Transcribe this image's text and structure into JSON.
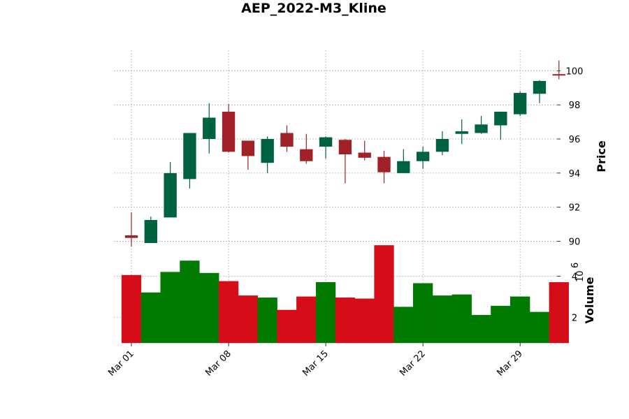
{
  "chart_data": {
    "type": "candlestick",
    "title": "AEP_2022-M3_Kline",
    "price_ylabel": "Price",
    "volume_ylabel": "Volume",
    "volume_exponent_base": "10",
    "volume_exponent": "6",
    "price_ylim": [
      89.0,
      101.2
    ],
    "price_ticks": [
      90,
      92,
      94,
      96,
      98,
      100
    ],
    "volume_ylim": [
      0.75,
      4.8
    ],
    "volume_ticks": [
      2,
      4
    ],
    "xlim": [
      -0.9,
      21.9
    ],
    "x_ticks": [
      {
        "index": 0,
        "label": "Mar 01"
      },
      {
        "index": 5,
        "label": "Mar 08"
      },
      {
        "index": 10,
        "label": "Mar 15"
      },
      {
        "index": 15,
        "label": "Mar 22"
      },
      {
        "index": 20,
        "label": "Mar 29"
      }
    ],
    "grid": true,
    "colors": {
      "up": "#006340",
      "down": "#a02128",
      "vol_up": "#007a00",
      "vol_down": "#d50d18"
    },
    "candles": [
      {
        "date": "2022-03-01",
        "open": 90.35,
        "high": 91.7,
        "low": 89.7,
        "close": 90.2,
        "volume": 4.05
      },
      {
        "date": "2022-03-02",
        "open": 89.9,
        "high": 91.45,
        "low": 89.9,
        "close": 91.25,
        "volume": 3.2
      },
      {
        "date": "2022-03-03",
        "open": 91.4,
        "high": 94.65,
        "low": 91.4,
        "close": 94.0,
        "volume": 4.2
      },
      {
        "date": "2022-03-04",
        "open": 93.65,
        "high": 96.35,
        "low": 93.1,
        "close": 96.35,
        "volume": 4.75
      },
      {
        "date": "2022-03-07",
        "open": 96.0,
        "high": 98.1,
        "low": 95.15,
        "close": 97.25,
        "volume": 4.15
      },
      {
        "date": "2022-03-08",
        "open": 97.6,
        "high": 98.05,
        "low": 95.2,
        "close": 95.25,
        "volume": 3.75
      },
      {
        "date": "2022-03-09",
        "open": 95.9,
        "high": 95.9,
        "low": 94.2,
        "close": 95.0,
        "volume": 3.05
      },
      {
        "date": "2022-03-10",
        "open": 94.6,
        "high": 96.15,
        "low": 94.0,
        "close": 96.0,
        "volume": 2.95
      },
      {
        "date": "2022-03-11",
        "open": 96.35,
        "high": 96.8,
        "low": 95.25,
        "close": 95.55,
        "volume": 2.35
      },
      {
        "date": "2022-03-14",
        "open": 95.4,
        "high": 96.3,
        "low": 94.55,
        "close": 94.7,
        "volume": 3.0
      },
      {
        "date": "2022-03-15",
        "open": 95.55,
        "high": 96.15,
        "low": 94.85,
        "close": 96.1,
        "volume": 3.7
      },
      {
        "date": "2022-03-16",
        "open": 95.95,
        "high": 96.0,
        "low": 93.4,
        "close": 95.1,
        "volume": 2.95
      },
      {
        "date": "2022-03-17",
        "open": 95.2,
        "high": 95.9,
        "low": 94.75,
        "close": 94.9,
        "volume": 2.9
      },
      {
        "date": "2022-03-18",
        "open": 94.95,
        "high": 95.3,
        "low": 93.4,
        "close": 94.05,
        "volume": 5.5
      },
      {
        "date": "2022-03-21",
        "open": 94.0,
        "high": 95.4,
        "low": 94.0,
        "close": 94.7,
        "volume": 2.5
      },
      {
        "date": "2022-03-22",
        "open": 94.7,
        "high": 95.55,
        "low": 94.25,
        "close": 95.25,
        "volume": 3.65
      },
      {
        "date": "2022-03-23",
        "open": 95.25,
        "high": 96.45,
        "low": 95.05,
        "close": 96.0,
        "volume": 3.05
      },
      {
        "date": "2022-03-24",
        "open": 96.3,
        "high": 97.15,
        "low": 95.7,
        "close": 96.45,
        "volume": 3.1
      },
      {
        "date": "2022-03-25",
        "open": 96.35,
        "high": 97.35,
        "low": 96.3,
        "close": 96.85,
        "volume": 2.1
      },
      {
        "date": "2022-03-28",
        "open": 96.8,
        "high": 97.6,
        "low": 95.95,
        "close": 97.6,
        "volume": 2.55
      },
      {
        "date": "2022-03-29",
        "open": 97.45,
        "high": 98.8,
        "low": 97.35,
        "close": 98.7,
        "volume": 3.0
      },
      {
        "date": "2022-03-30",
        "open": 98.65,
        "high": 99.45,
        "low": 98.1,
        "close": 99.4,
        "volume": 2.25
      },
      {
        "date": "2022-03-31",
        "open": 99.8,
        "high": 100.6,
        "low": 99.5,
        "close": 99.75,
        "volume": 3.7
      }
    ]
  }
}
